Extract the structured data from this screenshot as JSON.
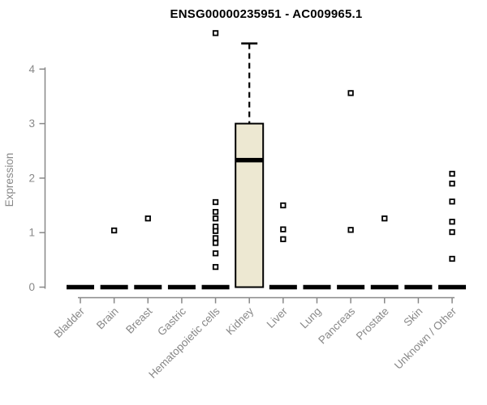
{
  "chart_data": {
    "type": "boxplot",
    "title": "ENSG00000235951 - AC009965.1",
    "ylabel": "Expression",
    "yticks": [
      0,
      1,
      2,
      3,
      4
    ],
    "ylim": [
      0,
      4.7
    ],
    "grid": false,
    "legend_position": "none",
    "axis_color": "#888888",
    "box_fill": "#EDE8D2",
    "box_stroke": "#000000",
    "outlier_fill": "#ffffff",
    "categories": [
      "Bladder",
      "Brain",
      "Breast",
      "Gastric",
      "Hematopoietic cells",
      "Kidney",
      "Liver",
      "Lung",
      "Pancreas",
      "Prostate",
      "Skin",
      "Unknown / Other"
    ],
    "boxes": [
      {
        "category": "Bladder",
        "min": 0,
        "q1": 0,
        "median": 0,
        "q3": 0,
        "max": 0,
        "outliers": []
      },
      {
        "category": "Brain",
        "min": 0,
        "q1": 0,
        "median": 0,
        "q3": 0,
        "max": 0,
        "outliers": [
          1.04
        ]
      },
      {
        "category": "Breast",
        "min": 0,
        "q1": 0,
        "median": 0,
        "q3": 0,
        "max": 0,
        "outliers": [
          1.26
        ]
      },
      {
        "category": "Gastric",
        "min": 0,
        "q1": 0,
        "median": 0,
        "q3": 0,
        "max": 0,
        "outliers": []
      },
      {
        "category": "Hematopoietic cells",
        "min": 0,
        "q1": 0,
        "median": 0,
        "q3": 0,
        "max": 0,
        "outliers": [
          4.66,
          1.56,
          1.38,
          1.26,
          1.11,
          1.03,
          0.9,
          0.81,
          0.62,
          0.37
        ]
      },
      {
        "category": "Kidney",
        "min": 0,
        "q1": 0,
        "median": 2.33,
        "q3": 3.0,
        "max": 4.47,
        "outliers": []
      },
      {
        "category": "Liver",
        "min": 0,
        "q1": 0,
        "median": 0,
        "q3": 0,
        "max": 0,
        "outliers": [
          1.5,
          1.06,
          0.88
        ]
      },
      {
        "category": "Lung",
        "min": 0,
        "q1": 0,
        "median": 0,
        "q3": 0,
        "max": 0,
        "outliers": []
      },
      {
        "category": "Pancreas",
        "min": 0,
        "q1": 0,
        "median": 0,
        "q3": 0,
        "max": 0,
        "outliers": [
          3.56,
          1.05
        ]
      },
      {
        "category": "Prostate",
        "min": 0,
        "q1": 0,
        "median": 0,
        "q3": 0,
        "max": 0,
        "outliers": [
          1.26
        ]
      },
      {
        "category": "Skin",
        "min": 0,
        "q1": 0,
        "median": 0,
        "q3": 0,
        "max": 0,
        "outliers": []
      },
      {
        "category": "Unknown / Other",
        "min": 0,
        "q1": 0,
        "median": 0,
        "q3": 0,
        "max": 0,
        "outliers": [
          2.08,
          1.9,
          1.57,
          1.2,
          1.01,
          0.52
        ]
      }
    ]
  }
}
